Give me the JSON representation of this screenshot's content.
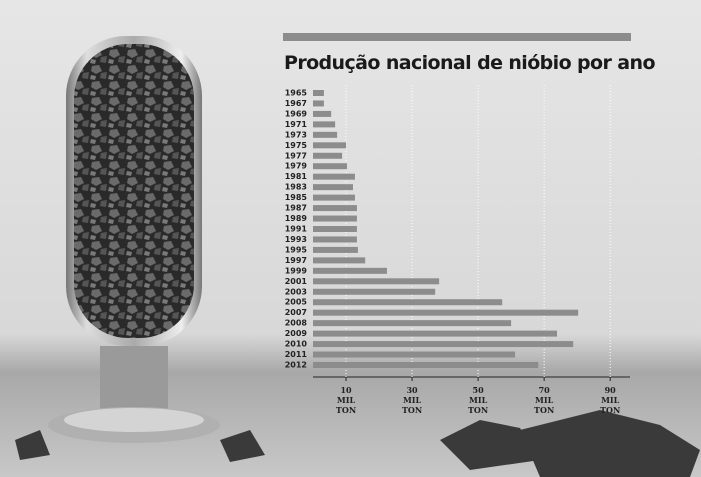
{
  "chart_data": {
    "type": "bar",
    "orientation": "horizontal",
    "title": "Produção nacional de nióbio por ano",
    "categories": [
      "1965",
      "1967",
      "1969",
      "1971",
      "1973",
      "1975",
      "1977",
      "1979",
      "1981",
      "1983",
      "1985",
      "1987",
      "1989",
      "1991",
      "1993",
      "1995",
      "1997",
      "1999",
      "2001",
      "2003",
      "2005",
      "2007",
      "2008",
      "2009",
      "2010",
      "2011",
      "2012"
    ],
    "values": [
      3.3,
      3.3,
      5.5,
      6.7,
      7.3,
      10,
      8.8,
      10.3,
      12.7,
      12.1,
      12.7,
      13.3,
      13.3,
      13.3,
      13.3,
      13.6,
      15.8,
      22.4,
      38.2,
      37,
      57.3,
      80.3,
      60,
      73.9,
      78.8,
      61.2,
      68.2
    ],
    "color": "#8c8c8c",
    "xlim": [
      0,
      96
    ],
    "xticks": [
      {
        "value": 10,
        "label": "10 MIL TON"
      },
      {
        "value": 30,
        "label": "30 MIL TON"
      },
      {
        "value": 50,
        "label": "50 MIL TON"
      },
      {
        "value": 70,
        "label": "70 MIL TON"
      },
      {
        "value": 90,
        "label": "90 MIL TON"
      }
    ],
    "grid": true
  }
}
